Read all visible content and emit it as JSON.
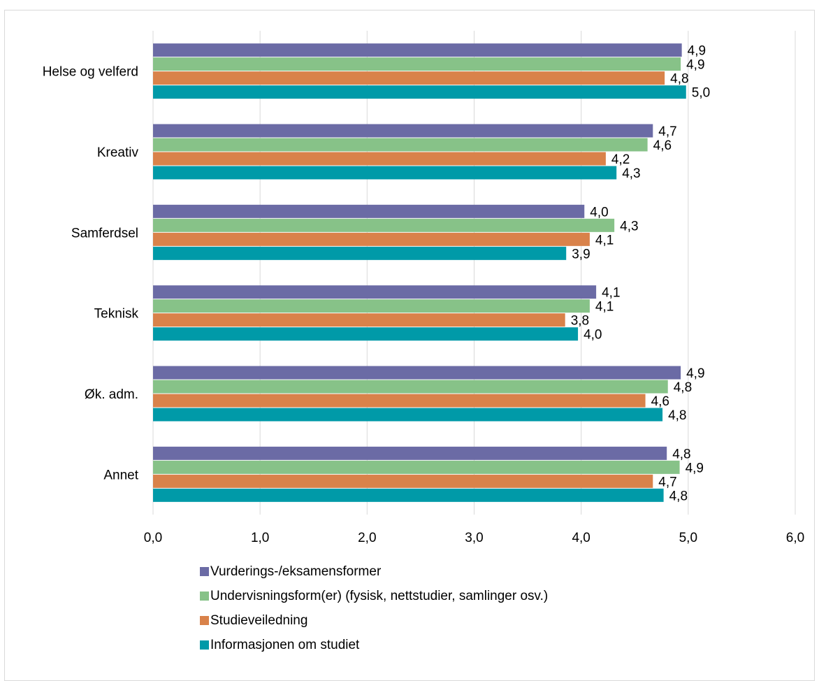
{
  "chart_data": {
    "type": "bar",
    "orientation": "horizontal",
    "categories": [
      "Helse og velferd",
      "Kreativ",
      "Samferdsel",
      "Teknisk",
      "Øk. adm.",
      "Annet"
    ],
    "series": [
      {
        "name": "Vurderings-/eksamensformer",
        "color": "#6b6ba5",
        "values": [
          4.94,
          4.67,
          4.03,
          4.14,
          4.93,
          4.8
        ],
        "labels": [
          "4,9",
          "4,7",
          "4,0",
          "4,1",
          "4,9",
          "4,8"
        ]
      },
      {
        "name": "Undervisningsform(er) (fysisk, nettstudier, samlinger osv.)",
        "color": "#87c288",
        "values": [
          4.93,
          4.62,
          4.31,
          4.08,
          4.81,
          4.92
        ],
        "labels": [
          "4,9",
          "4,6",
          "4,3",
          "4,1",
          "4,8",
          "4,9"
        ]
      },
      {
        "name": "Studieveiledning",
        "color": "#d9824a",
        "values": [
          4.78,
          4.23,
          4.08,
          3.85,
          4.6,
          4.67
        ],
        "labels": [
          "4,8",
          "4,2",
          "4,1",
          "3,8",
          "4,6",
          "4,7"
        ]
      },
      {
        "name": "Informasjonen om studiet",
        "color": "#009aa8",
        "values": [
          4.98,
          4.33,
          3.86,
          3.97,
          4.76,
          4.77
        ],
        "labels": [
          "5,0",
          "4,3",
          "3,9",
          "4,0",
          "4,8",
          "4,8"
        ]
      }
    ],
    "xlim": [
      0,
      6
    ],
    "xticks": [
      "0,0",
      "1,0",
      "2,0",
      "3,0",
      "4,0",
      "5,0",
      "6,0"
    ],
    "grid": true,
    "legend_position": "bottom",
    "title": "",
    "xlabel": "",
    "ylabel": ""
  }
}
